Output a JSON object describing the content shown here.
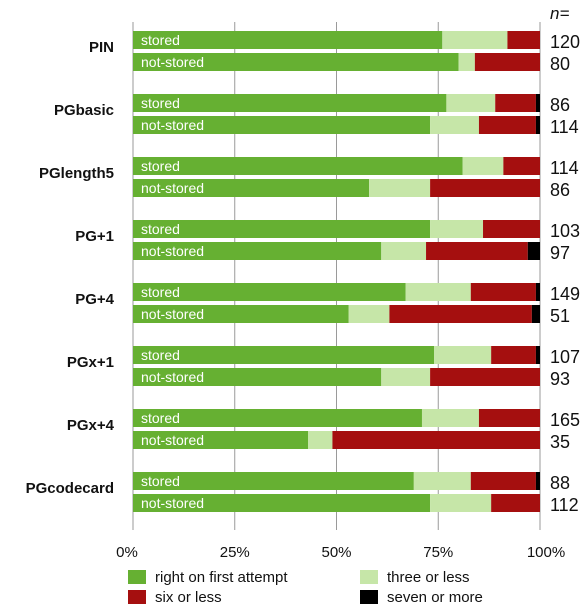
{
  "chart_data": {
    "type": "bar",
    "orientation": "horizontal",
    "stacked": true,
    "n_header": "n=",
    "x_ticks": [
      "0%",
      "25%",
      "50%",
      "75%",
      "100%"
    ],
    "xlim": [
      0,
      100
    ],
    "grid": true,
    "legend_position": "bottom",
    "segments": [
      {
        "name": "right on first attempt",
        "color": "#66b032"
      },
      {
        "name": "three or less",
        "color": "#c6e6a8"
      },
      {
        "name": "six or less",
        "color": "#a50f0f"
      },
      {
        "name": "seven or more",
        "color": "#000000"
      }
    ],
    "groups": [
      {
        "label": "PIN",
        "bars": [
          {
            "label": "stored",
            "values": [
              76,
              16,
              8,
              0
            ],
            "n": "120"
          },
          {
            "label": "not-stored",
            "values": [
              80,
              4,
              16,
              0
            ],
            "n": "80"
          }
        ]
      },
      {
        "label": "PGbasic",
        "bars": [
          {
            "label": "stored",
            "values": [
              77,
              12,
              10,
              1
            ],
            "n": "86"
          },
          {
            "label": "not-stored",
            "values": [
              73,
              12,
              14,
              1
            ],
            "n": "114"
          }
        ]
      },
      {
        "label": "PGlength5",
        "bars": [
          {
            "label": "stored",
            "values": [
              81,
              10,
              9,
              0
            ],
            "n": "114"
          },
          {
            "label": "not-stored",
            "values": [
              58,
              15,
              27,
              0
            ],
            "n": "86"
          }
        ]
      },
      {
        "label": "PG+1",
        "bars": [
          {
            "label": "stored",
            "values": [
              73,
              13,
              14,
              0
            ],
            "n": "103"
          },
          {
            "label": "not-stored",
            "values": [
              61,
              11,
              25,
              3
            ],
            "n": "97"
          }
        ]
      },
      {
        "label": "PG+4",
        "bars": [
          {
            "label": "stored",
            "values": [
              67,
              16,
              16,
              1
            ],
            "n": "149"
          },
          {
            "label": "not-stored",
            "values": [
              53,
              10,
              35,
              2
            ],
            "n": "51"
          }
        ]
      },
      {
        "label": "PGx+1",
        "bars": [
          {
            "label": "stored",
            "values": [
              74,
              14,
              11,
              1
            ],
            "n": "107"
          },
          {
            "label": "not-stored",
            "values": [
              61,
              12,
              27,
              0
            ],
            "n": "93"
          }
        ]
      },
      {
        "label": "PGx+4",
        "bars": [
          {
            "label": "stored",
            "values": [
              71,
              14,
              15,
              0
            ],
            "n": "165"
          },
          {
            "label": "not-stored",
            "values": [
              43,
              6,
              51,
              0
            ],
            "n": "35"
          }
        ]
      },
      {
        "label": "PGcodecard",
        "bars": [
          {
            "label": "stored",
            "values": [
              69,
              14,
              16,
              1
            ],
            "n": "88"
          },
          {
            "label": "not-stored",
            "values": [
              73,
              15,
              12,
              0
            ],
            "n": "112"
          }
        ]
      }
    ]
  }
}
